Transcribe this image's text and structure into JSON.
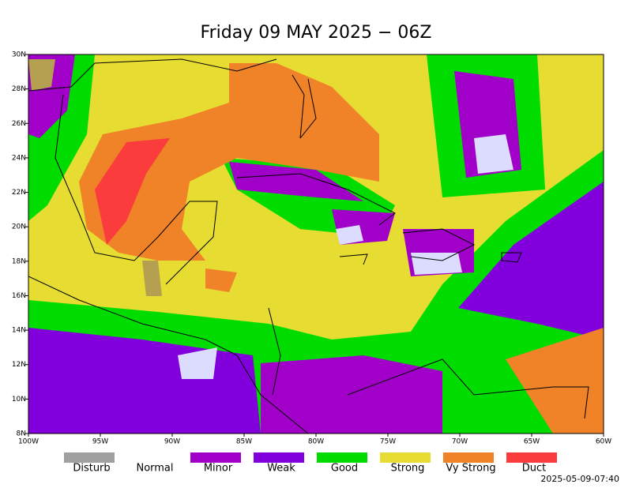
{
  "map": {
    "title": "Friday 09 MAY 2025 − 06Z",
    "xticks": [
      {
        "value": -100,
        "label": "100W"
      },
      {
        "value": -95,
        "label": "95W"
      },
      {
        "value": -90,
        "label": "90W"
      },
      {
        "value": -85,
        "label": "85W"
      },
      {
        "value": -80,
        "label": "80W"
      },
      {
        "value": -75,
        "label": "75W"
      },
      {
        "value": -70,
        "label": "70W"
      },
      {
        "value": -65,
        "label": "65W"
      },
      {
        "value": -60,
        "label": "60W"
      }
    ],
    "xlim": [
      -100,
      -60
    ],
    "yticks": [
      {
        "value": 8,
        "label": "8N"
      },
      {
        "value": 10,
        "label": "10N"
      },
      {
        "value": 12,
        "label": "12N"
      },
      {
        "value": 14,
        "label": "14N"
      },
      {
        "value": 16,
        "label": "16N"
      },
      {
        "value": 18,
        "label": "18N"
      },
      {
        "value": 20,
        "label": "20N"
      },
      {
        "value": 22,
        "label": "22N"
      },
      {
        "value": 24,
        "label": "24N"
      },
      {
        "value": 26,
        "label": "26N"
      },
      {
        "value": 28,
        "label": "28N"
      },
      {
        "value": 30,
        "label": "30N"
      }
    ],
    "ylim": [
      8,
      30
    ],
    "legend": [
      {
        "label": "Disturb",
        "color": "#a0a0a0"
      },
      {
        "label": "Normal",
        "color": "#ffffff"
      },
      {
        "label": "Minor",
        "color": "#a000c8"
      },
      {
        "label": "Weak",
        "color": "#8200dc"
      },
      {
        "label": "Good",
        "color": "#00dc00"
      },
      {
        "label": "Strong",
        "color": "#e6dc32"
      },
      {
        "label": "Vy Strong",
        "color": "#f08228"
      },
      {
        "label": "Duct",
        "color": "#fa3c3c"
      }
    ],
    "timestamp": "2025-05-09-07:40"
  }
}
